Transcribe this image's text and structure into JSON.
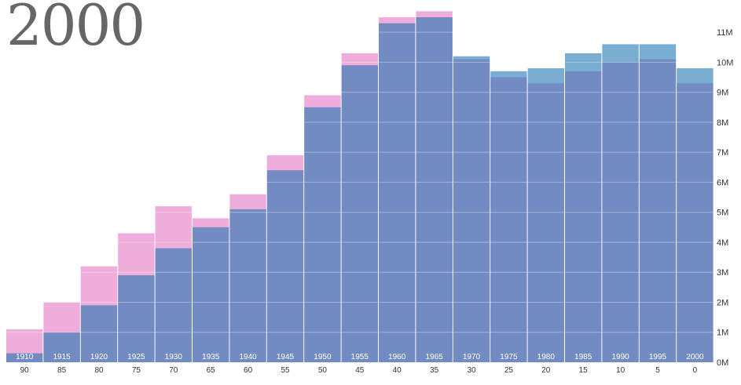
{
  "title": "2000",
  "chart_data": {
    "type": "bar",
    "title": "2000",
    "xlabel": "",
    "ylabel": "",
    "ylim": [
      0,
      11500000
    ],
    "y_ticks": [
      "0M",
      "1M",
      "2M",
      "3M",
      "4M",
      "5M",
      "6M",
      "7M",
      "8M",
      "9M",
      "10M",
      "11M"
    ],
    "y_tick_values": [
      0,
      1000000,
      2000000,
      3000000,
      4000000,
      5000000,
      6000000,
      7000000,
      8000000,
      9000000,
      10000000,
      11000000
    ],
    "categories": [
      "90",
      "85",
      "80",
      "75",
      "70",
      "65",
      "60",
      "55",
      "50",
      "45",
      "40",
      "35",
      "30",
      "25",
      "20",
      "15",
      "10",
      "5",
      "0"
    ],
    "birth_years": [
      "1910",
      "1915",
      "1920",
      "1925",
      "1930",
      "1935",
      "1940",
      "1945",
      "1950",
      "1955",
      "1960",
      "1965",
      "1970",
      "1975",
      "1980",
      "1985",
      "1990",
      "1995",
      "2000"
    ],
    "series": [
      {
        "values": [
          1100000,
          2000000,
          3200000,
          4300000,
          5200000,
          4800000,
          5600000,
          6900000,
          8900000,
          10300000,
          11500000,
          11700000,
          10100000,
          9500000,
          9300000,
          9700000,
          10000000,
          10100000,
          9300000
        ],
        "color": "#e377c2"
      },
      {
        "values": [
          300000,
          1000000,
          1900000,
          2900000,
          3800000,
          4500000,
          5100000,
          6400000,
          8500000,
          9900000,
          11300000,
          11500000,
          10200000,
          9700000,
          9800000,
          10300000,
          10600000,
          10600000,
          9800000
        ],
        "color": "#1f77b4"
      }
    ],
    "grid": true
  }
}
